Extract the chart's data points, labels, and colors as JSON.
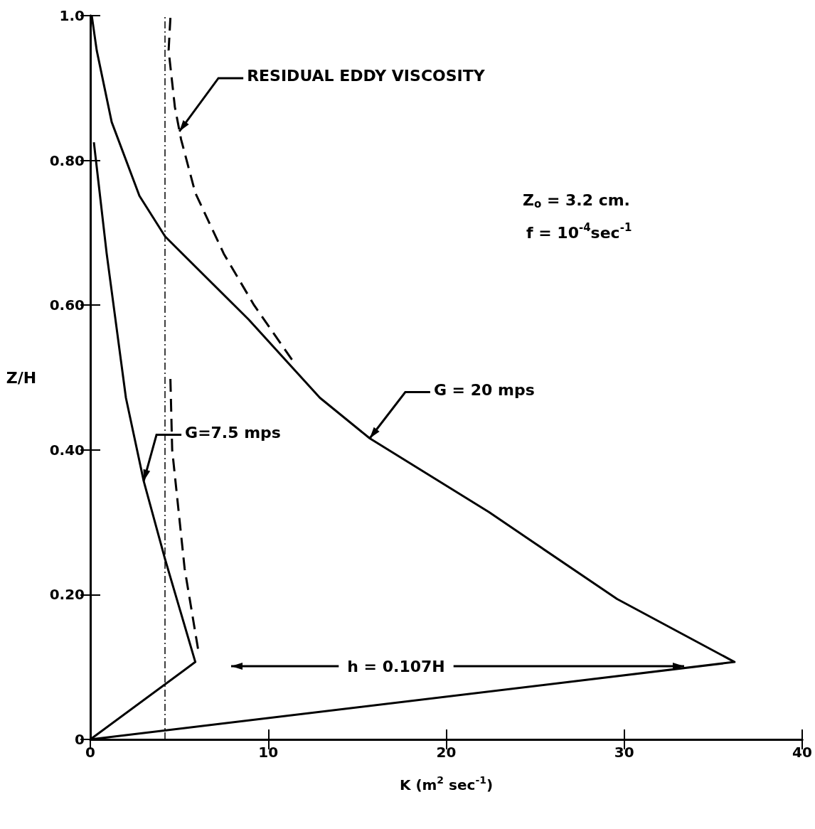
{
  "chart_data": {
    "type": "line",
    "xlabel": "K (m$^{2}$ sec$^{-1}$)",
    "ylabel": "Z/H",
    "xlim": [
      0,
      40
    ],
    "xticks": [
      0,
      10,
      20,
      30,
      40
    ],
    "ylim": [
      0,
      1.0
    ],
    "yticks": [
      0,
      {
        "value": 0.2,
        "label": "0.20"
      },
      {
        "value": 0.4,
        "label": "0.40"
      },
      {
        "value": 0.6,
        "label": "0.60"
      },
      {
        "value": 0.8,
        "label": "0.80"
      },
      {
        "value": 1.0,
        "label": "1.0"
      }
    ],
    "grid": false,
    "marker": "none",
    "series": [
      {
        "color": "#000000",
        "line_style": "solid",
        "x": [
          0,
          36.2,
          29.6,
          22.4,
          15.7,
          12.9,
          8.9,
          4.2,
          2.76,
          1.2,
          0.36,
          0.08
        ],
        "values": [
          0,
          0.107,
          0.194,
          0.314,
          0.416,
          0.472,
          0.58,
          0.695,
          0.751,
          0.853,
          0.952,
          1.0
        ]
      },
      {
        "color": "#000000",
        "line_style": "solid",
        "x": [
          0,
          5.9,
          4.2,
          3.0,
          2.0,
          0.92,
          0.2
        ],
        "values": [
          0,
          0.107,
          0.249,
          0.357,
          0.472,
          0.671,
          0.825
        ]
      },
      {
        "color": "#000000",
        "line_style": "dashed",
        "x": [
          4.5,
          4.4,
          4.75,
          5.1,
          5.9,
          7.5,
          9.2,
          11.35
        ],
        "values": [
          0.997,
          0.952,
          0.874,
          0.829,
          0.755,
          0.671,
          0.6,
          0.524
        ]
      },
      {
        "color": "#000000",
        "line_style": "dashed",
        "x": [
          4.5,
          4.6,
          5.3,
          6.1
        ],
        "values": [
          0.498,
          0.4,
          0.236,
          0.118
        ]
      }
    ],
    "ref_lines": [
      {
        "axis": "x",
        "value": 4.2,
        "line_style": "dashed",
        "color": "#000000"
      }
    ],
    "annotations": [
      {
        "text": "RESIDUAL EDDY VISCOSITY",
        "x": 5.0,
        "y": 0.84
      },
      {
        "text": "G = 20 mps",
        "x": 15.7,
        "y": 0.416
      },
      {
        "text": "G=7.5 mps",
        "x": 3.0,
        "y": 0.357
      },
      "Z$_{o}$ = 3.2 cm.",
      "f = 10$^{-4}$sec$^{-1}$",
      "h = 0.107H"
    ]
  }
}
